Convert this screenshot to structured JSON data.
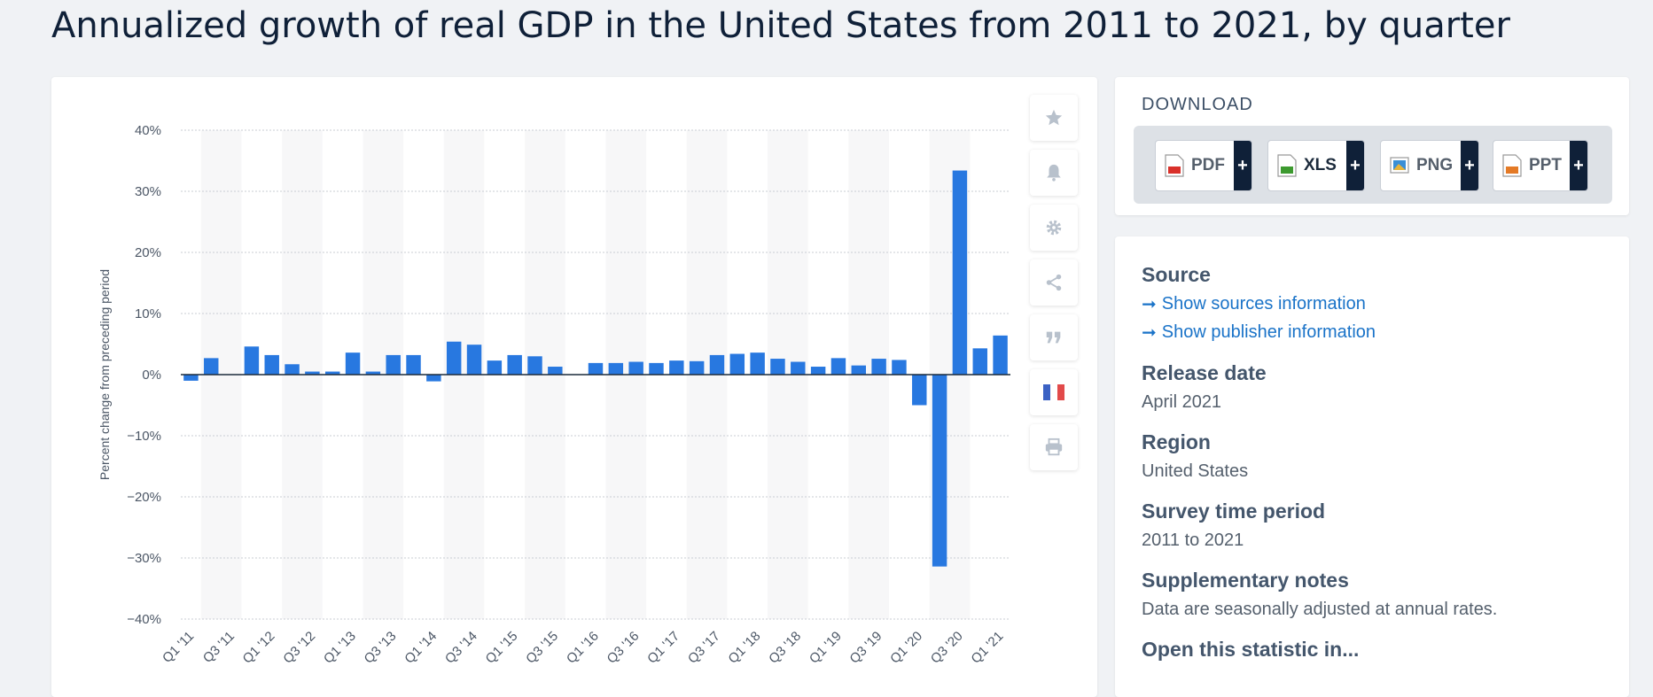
{
  "page_title": "Annualized growth of real GDP in the United States from 2011 to 2021, by quarter",
  "toolbar": {
    "icons": [
      "star-icon",
      "bell-icon",
      "gear-icon",
      "share-icon",
      "quote-icon",
      "flag-france-icon",
      "print-icon"
    ]
  },
  "download": {
    "title": "DOWNLOAD",
    "buttons": [
      {
        "label": "PDF",
        "icon": "pdf-file-icon",
        "color": "#d9302a"
      },
      {
        "label": "XLS",
        "icon": "xls-file-icon",
        "color": "#3d9a2f"
      },
      {
        "label": "PNG",
        "icon": "png-file-icon",
        "color": "#3a8fd6"
      },
      {
        "label": "PPT",
        "icon": "ppt-file-icon",
        "color": "#e47a26"
      }
    ],
    "plus": "+"
  },
  "info": {
    "source_heading": "Source",
    "source_link": "Show sources information",
    "publisher_link": "Show publisher information",
    "release_heading": "Release date",
    "release_value": "April 2021",
    "region_heading": "Region",
    "region_value": "United States",
    "period_heading": "Survey time period",
    "period_value": "2011 to 2021",
    "notes_heading": "Supplementary notes",
    "notes_value": "Data are seasonally adjusted at annual rates.",
    "open_heading": "Open this statistic in..."
  },
  "colors": {
    "bar": "#2878e0",
    "band": "#f7f7f8",
    "grid": "#c8cdd3",
    "zero_line": "#1c2b3c"
  },
  "chart_data": {
    "type": "bar",
    "title": "",
    "xlabel": "",
    "ylabel": "Percent change from preceding period",
    "ylim": [
      -40,
      40
    ],
    "yticks": [
      40,
      30,
      20,
      10,
      0,
      -10,
      -20,
      -30,
      -40
    ],
    "ytick_labels": [
      "40%",
      "30%",
      "20%",
      "10%",
      "0%",
      "−10%",
      "−20%",
      "−30%",
      "−40%"
    ],
    "xtick_labels": [
      "Q1 '11",
      "Q3 '11",
      "Q1 '12",
      "Q3 '12",
      "Q1 '13",
      "Q3 '13",
      "Q1 '14",
      "Q3 '14",
      "Q1 '15",
      "Q3 '15",
      "Q1 '16",
      "Q3 '16",
      "Q1 '17",
      "Q3 '17",
      "Q1 '18",
      "Q3 '18",
      "Q1 '19",
      "Q3 '19",
      "Q1 '20",
      "Q3 '20",
      "Q1 '21"
    ],
    "categories": [
      "Q1 '11",
      "Q2 '11",
      "Q3 '11",
      "Q4 '11",
      "Q1 '12",
      "Q2 '12",
      "Q3 '12",
      "Q4 '12",
      "Q1 '13",
      "Q2 '13",
      "Q3 '13",
      "Q4 '13",
      "Q1 '14",
      "Q2 '14",
      "Q3 '14",
      "Q4 '14",
      "Q1 '15",
      "Q2 '15",
      "Q3 '15",
      "Q4 '15",
      "Q1 '16",
      "Q2 '16",
      "Q3 '16",
      "Q4 '16",
      "Q1 '17",
      "Q2 '17",
      "Q3 '17",
      "Q4 '17",
      "Q1 '18",
      "Q2 '18",
      "Q3 '18",
      "Q4 '18",
      "Q1 '19",
      "Q2 '19",
      "Q3 '19",
      "Q4 '19",
      "Q1 '20",
      "Q2 '20",
      "Q3 '20",
      "Q4 '20",
      "Q1 '21"
    ],
    "values": [
      -1.0,
      2.7,
      0,
      4.6,
      3.2,
      1.7,
      0.5,
      0.5,
      3.6,
      0.5,
      3.2,
      3.2,
      -1.1,
      5.4,
      4.9,
      2.3,
      3.2,
      3.0,
      1.3,
      0,
      1.9,
      1.9,
      2.1,
      1.9,
      2.3,
      2.2,
      3.2,
      3.4,
      3.6,
      2.6,
      2.1,
      1.3,
      2.7,
      1.5,
      2.6,
      2.4,
      -5.0,
      -31.4,
      33.4,
      4.3,
      6.4
    ],
    "grid": true,
    "legend": "none"
  }
}
